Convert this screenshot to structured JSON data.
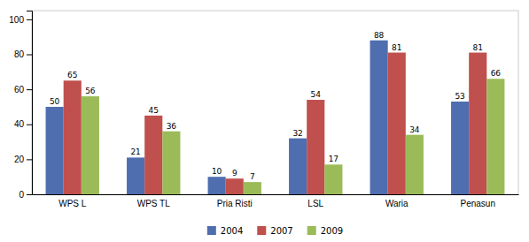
{
  "chart_data": {
    "type": "bar",
    "categories": [
      "WPS L",
      "WPS TL",
      "Pria Risti",
      "LSL",
      "Waria",
      "Penasun"
    ],
    "series": [
      {
        "name": "2004",
        "color": "#4F6EAF",
        "values": [
          50,
          21,
          10,
          32,
          88,
          53
        ]
      },
      {
        "name": "2007",
        "color": "#C0504D",
        "values": [
          65,
          45,
          9,
          54,
          81,
          81
        ]
      },
      {
        "name": "2009",
        "color": "#9BBB59",
        "values": [
          56,
          36,
          7,
          17,
          34,
          66
        ]
      }
    ],
    "ylim": [
      0,
      105
    ],
    "yticks": [
      0,
      20,
      40,
      60,
      80,
      100
    ],
    "grid": false,
    "legend": "bottom",
    "data_labels": true
  }
}
